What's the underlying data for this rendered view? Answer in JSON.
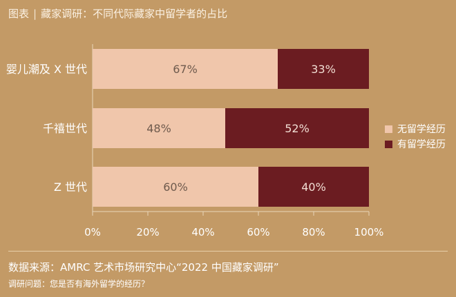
{
  "header": {
    "prefix": "图表",
    "separator": "|",
    "title": "藏家调研：不同代际藏家中留学者的占比"
  },
  "chart_data": {
    "type": "bar",
    "orientation": "horizontal",
    "stacked": true,
    "categories": [
      "婴儿潮及 X 世代",
      "千禧世代",
      "Z 世代"
    ],
    "series": [
      {
        "name": "无留学经历",
        "values": [
          67,
          48,
          60
        ],
        "labels": [
          "67%",
          "48%",
          "60%"
        ],
        "color": "#f0c6ab"
      },
      {
        "name": "有留学经历",
        "values": [
          33,
          52,
          40
        ],
        "labels": [
          "33%",
          "52%",
          "40%"
        ],
        "color": "#6b1c21"
      }
    ],
    "xlim": [
      0,
      100
    ],
    "xticks": [
      0,
      20,
      40,
      60,
      80,
      100
    ],
    "xtick_labels": [
      "0%",
      "20%",
      "40%",
      "60%",
      "80%",
      "100%"
    ],
    "legend_position": "right",
    "colors": {
      "background": "#c39a66",
      "label_light": "#6e5a4d",
      "label_dark": "#f1ddd3"
    }
  },
  "footer": {
    "source": "数据来源：AMRC 艺术市场研究中心“2022 中国藏家调研”",
    "question": "调研问题：您是否有海外留学的经历？"
  }
}
